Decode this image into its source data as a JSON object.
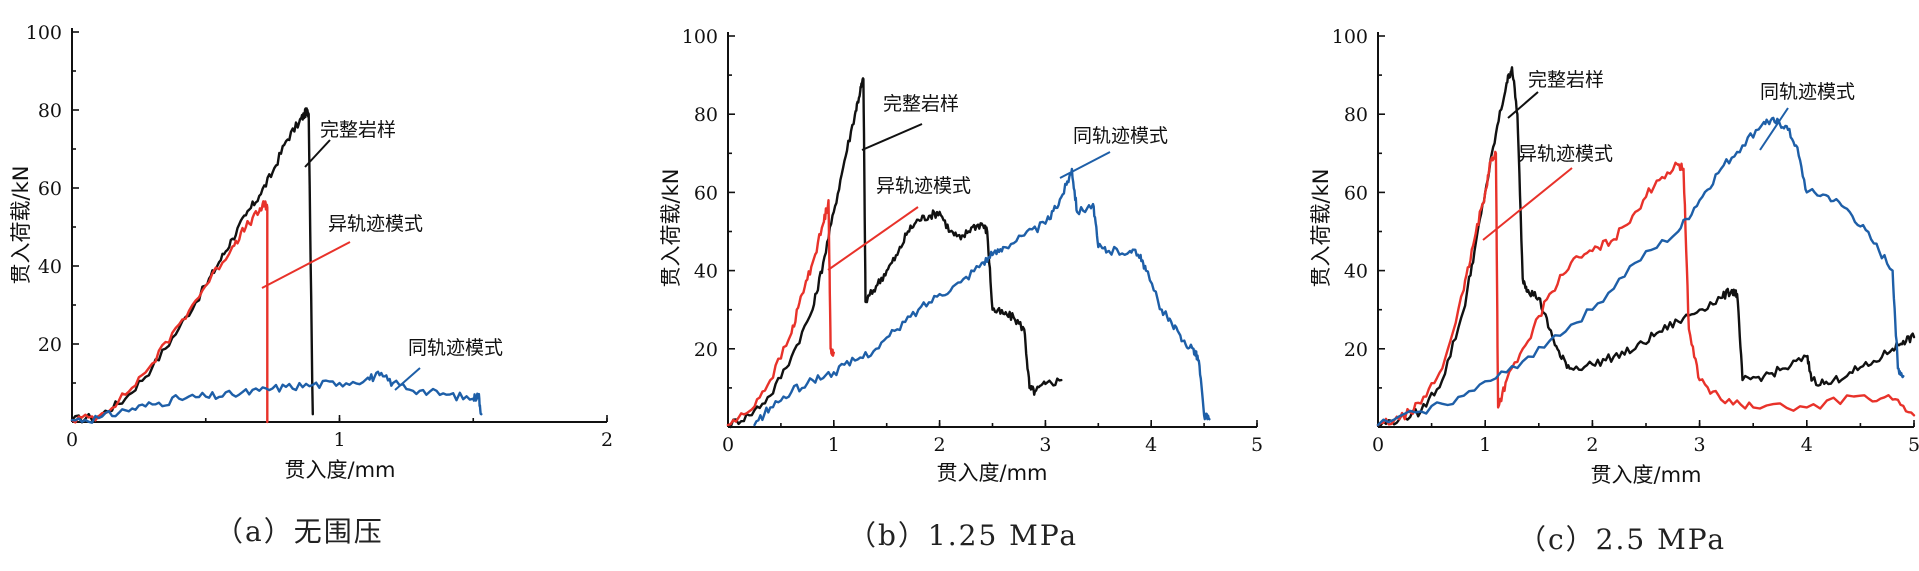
{
  "chart_data": [
    {
      "type": "line",
      "caption": "（a）无围压",
      "xlabel": "贯入度/mm",
      "ylabel": "贯入荷载/kN",
      "xlim": [
        0,
        2
      ],
      "ylim": [
        0,
        100
      ],
      "xticks": [
        0,
        1,
        2
      ],
      "yticks": [
        20,
        40,
        60,
        80,
        100
      ],
      "series": [
        {
          "name": "完整岩样",
          "color": "#111111",
          "points": [
            [
              0.0,
              0.5
            ],
            [
              0.1,
              1.5
            ],
            [
              0.2,
              6
            ],
            [
              0.3,
              14
            ],
            [
              0.4,
              24
            ],
            [
              0.5,
              35
            ],
            [
              0.55,
              41
            ],
            [
              0.6,
              47
            ],
            [
              0.65,
              53
            ],
            [
              0.7,
              58
            ],
            [
              0.75,
              64
            ],
            [
              0.8,
              72
            ],
            [
              0.85,
              77
            ],
            [
              0.87,
              79
            ],
            [
              0.88,
              80
            ],
            [
              0.885,
              79
            ],
            [
              0.9,
              2
            ]
          ]
        },
        {
          "name": "异轨迹模式",
          "color": "#e8322a",
          "points": [
            [
              0.0,
              0.5
            ],
            [
              0.1,
              1.5
            ],
            [
              0.2,
              7
            ],
            [
              0.3,
              15
            ],
            [
              0.4,
              25
            ],
            [
              0.5,
              35
            ],
            [
              0.6,
              45
            ],
            [
              0.65,
              50
            ],
            [
              0.7,
              54
            ],
            [
              0.72,
              56
            ],
            [
              0.73,
              55
            ],
            [
              0.73,
              0
            ]
          ]
        },
        {
          "name": "同轨迹模式",
          "color": "#1e5fa8",
          "points": [
            [
              0.0,
              0.5
            ],
            [
              0.1,
              1
            ],
            [
              0.2,
              3
            ],
            [
              0.3,
              4.5
            ],
            [
              0.4,
              6
            ],
            [
              0.5,
              6.5
            ],
            [
              0.6,
              7
            ],
            [
              0.7,
              8
            ],
            [
              0.8,
              9
            ],
            [
              0.9,
              9.5
            ],
            [
              1.0,
              10
            ],
            [
              1.1,
              11
            ],
            [
              1.15,
              12
            ],
            [
              1.2,
              10
            ],
            [
              1.3,
              8
            ],
            [
              1.4,
              7
            ],
            [
              1.5,
              6
            ],
            [
              1.52,
              7
            ],
            [
              1.53,
              2
            ]
          ]
        }
      ],
      "annotations": [
        "完整岩样",
        "异轨迹模式",
        "同轨迹模式"
      ]
    },
    {
      "type": "line",
      "caption": "（b）1.25 MPa",
      "xlabel": "贯入度/mm",
      "ylabel": "贯入荷载/kN",
      "xlim": [
        0,
        5
      ],
      "ylim": [
        0,
        100
      ],
      "xticks": [
        0,
        1,
        2,
        3,
        4,
        5
      ],
      "yticks": [
        20,
        40,
        60,
        80,
        100
      ],
      "series": [
        {
          "name": "完整岩样",
          "color": "#111111",
          "points": [
            [
              0.0,
              0.5
            ],
            [
              0.2,
              3
            ],
            [
              0.4,
              8
            ],
            [
              0.6,
              18
            ],
            [
              0.8,
              30
            ],
            [
              0.9,
              42
            ],
            [
              1.0,
              55
            ],
            [
              1.1,
              68
            ],
            [
              1.2,
              80
            ],
            [
              1.25,
              86
            ],
            [
              1.28,
              89
            ],
            [
              1.3,
              32
            ],
            [
              1.4,
              36
            ],
            [
              1.5,
              40
            ],
            [
              1.6,
              44
            ],
            [
              1.7,
              50
            ],
            [
              1.8,
              53
            ],
            [
              1.9,
              54
            ],
            [
              2.0,
              55
            ],
            [
              2.1,
              50
            ],
            [
              2.2,
              48
            ],
            [
              2.3,
              51
            ],
            [
              2.4,
              52
            ],
            [
              2.45,
              50
            ],
            [
              2.5,
              30
            ],
            [
              2.6,
              29
            ],
            [
              2.7,
              28
            ],
            [
              2.8,
              25
            ],
            [
              2.85,
              10
            ],
            [
              2.9,
              9
            ],
            [
              3.0,
              11
            ],
            [
              3.15,
              12
            ]
          ]
        },
        {
          "name": "异轨迹模式",
          "color": "#e8322a",
          "points": [
            [
              0.0,
              0.5
            ],
            [
              0.2,
              4
            ],
            [
              0.4,
              12
            ],
            [
              0.6,
              24
            ],
            [
              0.7,
              34
            ],
            [
              0.8,
              42
            ],
            [
              0.9,
              52
            ],
            [
              0.95,
              58
            ],
            [
              0.97,
              20
            ],
            [
              1.0,
              19
            ]
          ]
        },
        {
          "name": "同轨迹模式",
          "color": "#1e5fa8",
          "points": [
            [
              0.25,
              0.5
            ],
            [
              0.4,
              5
            ],
            [
              0.6,
              9
            ],
            [
              0.8,
              12
            ],
            [
              1.0,
              14
            ],
            [
              1.2,
              17
            ],
            [
              1.4,
              20
            ],
            [
              1.6,
              25
            ],
            [
              1.8,
              30
            ],
            [
              2.0,
              34
            ],
            [
              2.2,
              37
            ],
            [
              2.4,
              42
            ],
            [
              2.5,
              44
            ],
            [
              2.6,
              46
            ],
            [
              2.8,
              49
            ],
            [
              3.0,
              52
            ],
            [
              3.1,
              56
            ],
            [
              3.2,
              62
            ],
            [
              3.25,
              66
            ],
            [
              3.3,
              55
            ],
            [
              3.45,
              57
            ],
            [
              3.5,
              46
            ],
            [
              3.6,
              45
            ],
            [
              3.8,
              45
            ],
            [
              3.9,
              44
            ],
            [
              3.95,
              40
            ],
            [
              4.1,
              30
            ],
            [
              4.2,
              26
            ],
            [
              4.3,
              22
            ],
            [
              4.4,
              20
            ],
            [
              4.45,
              17
            ],
            [
              4.5,
              3
            ],
            [
              4.55,
              2
            ]
          ]
        }
      ],
      "annotations": [
        "完整岩样",
        "异轨迹模式",
        "同轨迹模式"
      ]
    },
    {
      "type": "line",
      "caption": "（c）2.5 MPa",
      "xlabel": "贯入度/mm",
      "ylabel": "贯入荷载/kN",
      "xlim": [
        0,
        5
      ],
      "ylim": [
        0,
        100
      ],
      "xticks": [
        0,
        1,
        2,
        3,
        4,
        5
      ],
      "yticks": [
        20,
        40,
        60,
        80,
        100
      ],
      "series": [
        {
          "name": "完整岩样",
          "color": "#111111",
          "points": [
            [
              0.0,
              0.5
            ],
            [
              0.2,
              2
            ],
            [
              0.4,
              4
            ],
            [
              0.6,
              12
            ],
            [
              0.8,
              30
            ],
            [
              0.9,
              45
            ],
            [
              1.0,
              60
            ],
            [
              1.1,
              75
            ],
            [
              1.2,
              88
            ],
            [
              1.25,
              92
            ],
            [
              1.3,
              80
            ],
            [
              1.35,
              38
            ],
            [
              1.4,
              35
            ],
            [
              1.5,
              33
            ],
            [
              1.6,
              25
            ],
            [
              1.7,
              18
            ],
            [
              1.8,
              15
            ],
            [
              2.0,
              16
            ],
            [
              2.2,
              18
            ],
            [
              2.4,
              20
            ],
            [
              2.6,
              24
            ],
            [
              2.8,
              27
            ],
            [
              3.0,
              30
            ],
            [
              3.2,
              33
            ],
            [
              3.3,
              35
            ],
            [
              3.35,
              34
            ],
            [
              3.4,
              12
            ],
            [
              3.6,
              13
            ],
            [
              3.8,
              15
            ],
            [
              4.0,
              18
            ],
            [
              4.05,
              12
            ],
            [
              4.2,
              11
            ],
            [
              4.4,
              14
            ],
            [
              4.6,
              16
            ],
            [
              4.8,
              20
            ],
            [
              4.9,
              22
            ],
            [
              5.0,
              23
            ]
          ]
        },
        {
          "name": "异轨迹模式",
          "color": "#e8322a",
          "points": [
            [
              0.0,
              0.5
            ],
            [
              0.2,
              2
            ],
            [
              0.4,
              6
            ],
            [
              0.6,
              15
            ],
            [
              0.8,
              35
            ],
            [
              0.9,
              48
            ],
            [
              1.0,
              60
            ],
            [
              1.05,
              68
            ],
            [
              1.1,
              70
            ],
            [
              1.12,
              5
            ],
            [
              1.2,
              12
            ],
            [
              1.4,
              22
            ],
            [
              1.6,
              34
            ],
            [
              1.8,
              42
            ],
            [
              2.0,
              45
            ],
            [
              2.2,
              48
            ],
            [
              2.4,
              55
            ],
            [
              2.6,
              63
            ],
            [
              2.8,
              67
            ],
            [
              2.85,
              66
            ],
            [
              2.9,
              25
            ],
            [
              3.0,
              12
            ],
            [
              3.2,
              7
            ],
            [
              3.5,
              5
            ],
            [
              4.0,
              5
            ],
            [
              4.5,
              8
            ],
            [
              4.8,
              7
            ],
            [
              5.0,
              3
            ]
          ]
        },
        {
          "name": "同轨迹模式",
          "color": "#1e5fa8",
          "points": [
            [
              0.0,
              0.5
            ],
            [
              0.4,
              4
            ],
            [
              0.8,
              8
            ],
            [
              1.2,
              14
            ],
            [
              1.6,
              22
            ],
            [
              2.0,
              30
            ],
            [
              2.4,
              42
            ],
            [
              2.8,
              50
            ],
            [
              3.0,
              58
            ],
            [
              3.2,
              66
            ],
            [
              3.4,
              72
            ],
            [
              3.6,
              78
            ],
            [
              3.7,
              78
            ],
            [
              3.8,
              77
            ],
            [
              3.9,
              72
            ],
            [
              4.0,
              60
            ],
            [
              4.2,
              59
            ],
            [
              4.4,
              55
            ],
            [
              4.6,
              48
            ],
            [
              4.8,
              40
            ],
            [
              4.85,
              15
            ],
            [
              4.9,
              13
            ]
          ]
        }
      ],
      "annotations": [
        "完整岩样",
        "异轨迹模式",
        "同轨迹模式"
      ]
    }
  ]
}
